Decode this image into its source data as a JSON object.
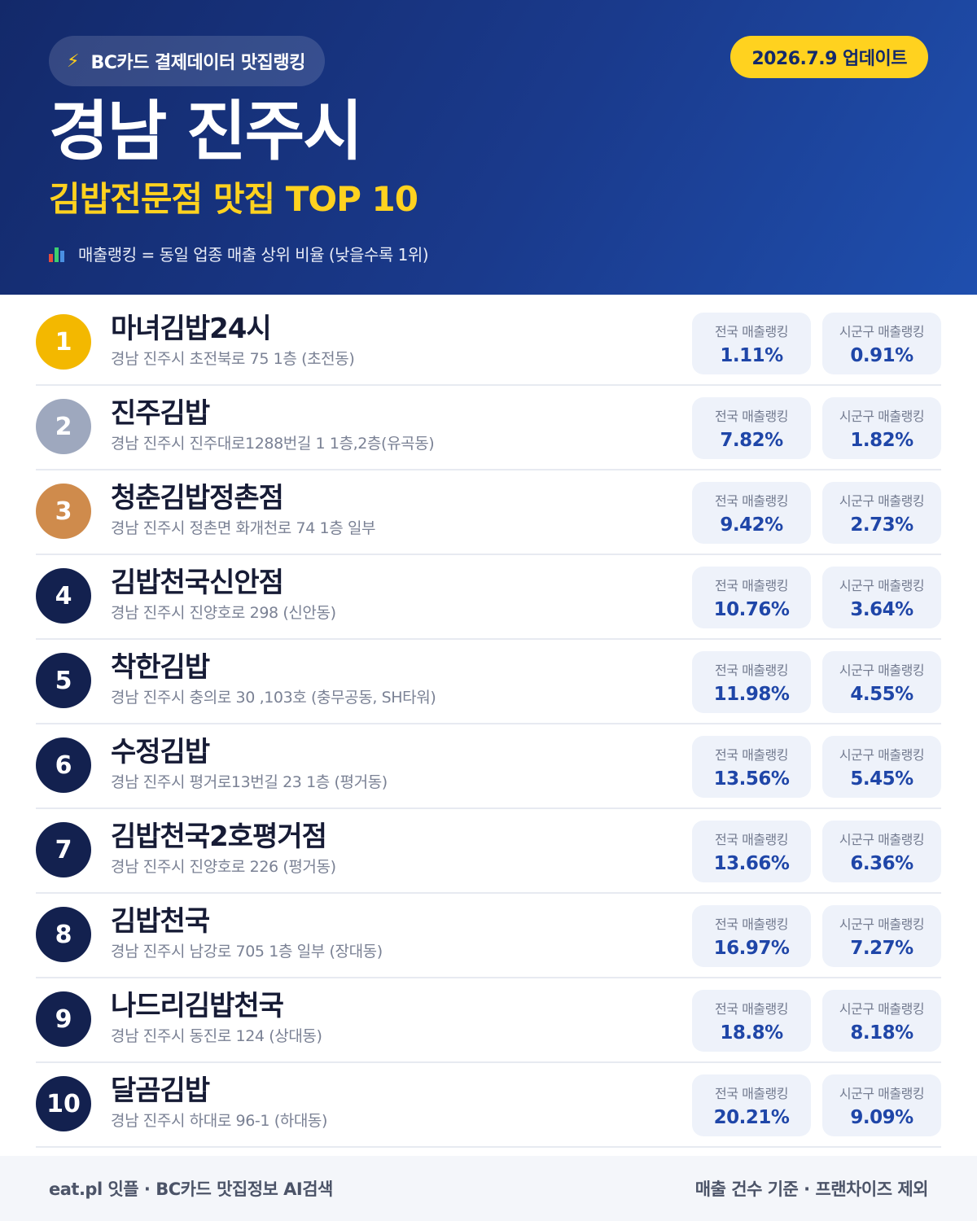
{
  "header": {
    "brand_icon": "lightning-icon",
    "brand_label": "BC카드 결제데이터 맛집랭킹",
    "update_label": "2026.7.9 업데이트",
    "city": "경남 진주시",
    "category": "김밥전문점 맛집 TOP 10",
    "legend_icon": "bar-chart-icon",
    "legend_text": "매출랭킹 = 동일 업종 매출 상위 비율 (낮을수록 1위)"
  },
  "colors": {
    "header_dark": "#13296a",
    "header_light": "#1f4fae",
    "accent_yellow": "#ffd21f",
    "rank_gold": "#f3b800",
    "rank_silver": "#9ea8be",
    "rank_bronze": "#cf8b4c",
    "rank_default": "#13214f",
    "value_blue": "#1f46a8"
  },
  "stat_labels": {
    "national": "전국 매출랭킹",
    "local": "시군구 매출랭킹"
  },
  "items": [
    {
      "rank": "1",
      "name": "마녀김밥24시",
      "address": "경남 진주시 초전북로 75 1층 (초전동)",
      "national": "1.11%",
      "local": "0.91%"
    },
    {
      "rank": "2",
      "name": "진주김밥",
      "address": "경남 진주시 진주대로1288번길 1 1층,2층(유곡동)",
      "national": "7.82%",
      "local": "1.82%"
    },
    {
      "rank": "3",
      "name": "청춘김밥정촌점",
      "address": "경남 진주시 정촌면 화개천로 74 1층 일부",
      "national": "9.42%",
      "local": "2.73%"
    },
    {
      "rank": "4",
      "name": "김밥천국신안점",
      "address": "경남 진주시 진양호로 298 (신안동)",
      "national": "10.76%",
      "local": "3.64%"
    },
    {
      "rank": "5",
      "name": "착한김밥",
      "address": "경남 진주시 충의로 30 ,103호 (충무공동, SH타워)",
      "national": "11.98%",
      "local": "4.55%"
    },
    {
      "rank": "6",
      "name": "수정김밥",
      "address": "경남 진주시 평거로13번길 23 1층 (평거동)",
      "national": "13.56%",
      "local": "5.45%"
    },
    {
      "rank": "7",
      "name": "김밥천국2호평거점",
      "address": "경남 진주시 진양호로 226 (평거동)",
      "national": "13.66%",
      "local": "6.36%"
    },
    {
      "rank": "8",
      "name": "김밥천국",
      "address": "경남 진주시 남강로 705 1층 일부 (장대동)",
      "national": "16.97%",
      "local": "7.27%"
    },
    {
      "rank": "9",
      "name": "나드리김밥천국",
      "address": "경남 진주시 동진로 124 (상대동)",
      "national": "18.8%",
      "local": "8.18%"
    },
    {
      "rank": "10",
      "name": "달곰김밥",
      "address": "경남 진주시 하대로 96-1 (하대동)",
      "national": "20.21%",
      "local": "9.09%"
    }
  ],
  "footer": {
    "left": "eat.pl 잇플 · BC카드 맛집정보 AI검색",
    "right": "매출 건수 기준 · 프랜차이즈 제외"
  }
}
